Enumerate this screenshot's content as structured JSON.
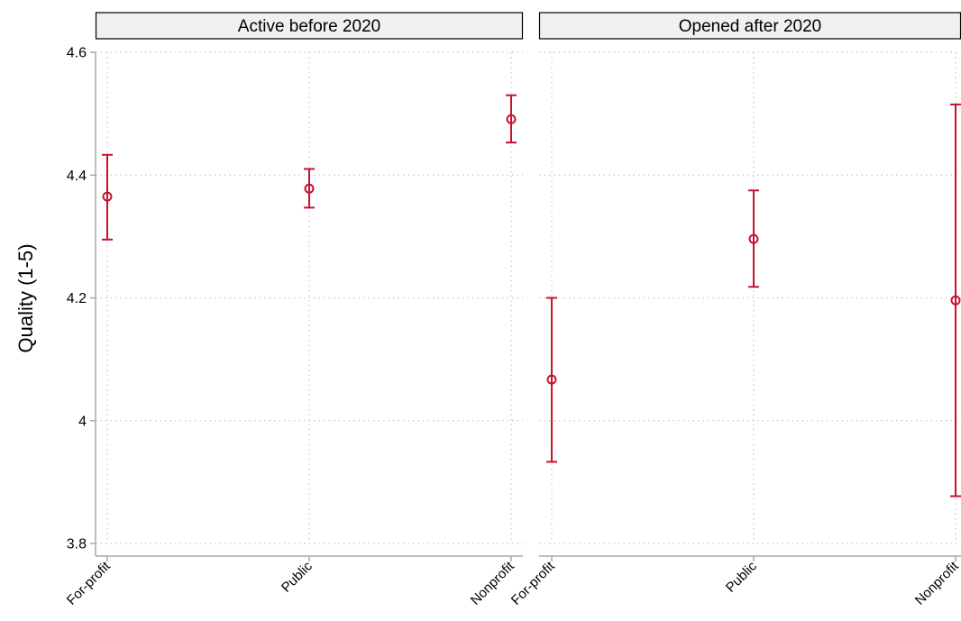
{
  "chart_data": {
    "type": "scatter",
    "ylabel": "Quality (1-5)",
    "xlabel": "",
    "ylim": [
      3.8,
      4.6
    ],
    "yticks": [
      3.8,
      4,
      4.2,
      4.4,
      4.6
    ],
    "ytick_labels": [
      "3.8",
      "4",
      "4.2",
      "4.4",
      "4.6"
    ],
    "grid": true,
    "point_color": "#c8102e",
    "categories": [
      "For-profit",
      "Public",
      "Nonprofit"
    ],
    "panels": [
      {
        "title": "Active before 2020",
        "points": [
          {
            "category": "For-profit",
            "estimate": 4.365,
            "lower": 4.295,
            "upper": 4.433
          },
          {
            "category": "Public",
            "estimate": 4.378,
            "lower": 4.347,
            "upper": 4.41
          },
          {
            "category": "Nonprofit",
            "estimate": 4.491,
            "lower": 4.453,
            "upper": 4.53
          }
        ]
      },
      {
        "title": "Opened after 2020",
        "points": [
          {
            "category": "For-profit",
            "estimate": 4.067,
            "lower": 3.933,
            "upper": 4.2
          },
          {
            "category": "Public",
            "estimate": 4.296,
            "lower": 4.218,
            "upper": 4.375
          },
          {
            "category": "Nonprofit",
            "estimate": 4.196,
            "lower": 3.877,
            "upper": 4.515
          }
        ]
      }
    ]
  }
}
